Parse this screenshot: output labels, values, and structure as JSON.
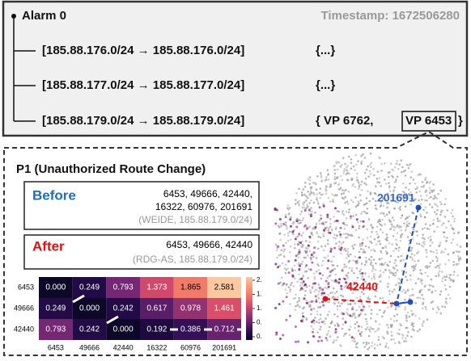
{
  "alarm": {
    "title": "Alarm 0",
    "timestamp": "Timestamp: 1672506280",
    "rows": [
      {
        "route": "[185.88.176.0/24 → 185.88.176.0/24]",
        "detail": "{...}"
      },
      {
        "route": "[185.88.177.0/24 → 185.88.177.0/24]",
        "detail": "{...}"
      },
      {
        "route": "[185.88.179.0/24 → 185.88.179.0/24]",
        "detail_open": "{ VP 6762,",
        "detail_boxed": "VP 6453",
        "detail_close": "}"
      }
    ]
  },
  "panel": {
    "title": "P1 (Unauthorized Route Change)",
    "before": {
      "label": "Before",
      "lines": [
        "6453, 49666, 42440,",
        "16322, 60976, 201691"
      ],
      "note": "(WEIDE, 185.88.179.0/24)"
    },
    "after": {
      "label": "After",
      "lines": [
        "6453, 49666, 42440"
      ],
      "note": "(RDG-AS, 185.88.179.0/24)"
    },
    "heatmap": {
      "row_labels": [
        "6453",
        "49666",
        "42440"
      ],
      "col_labels": [
        "6453",
        "49666",
        "42440",
        "16322",
        "60976",
        "201691"
      ],
      "cells": [
        [
          "0.000",
          "0.249",
          "0.793",
          "1.373",
          "1.865",
          "2.581"
        ],
        [
          "0.249",
          "0.000",
          "0.242",
          "0.617",
          "0.978",
          "1.461"
        ],
        [
          "0.793",
          "0.242",
          "0.000",
          "0.192",
          "0.386",
          "0.712"
        ]
      ],
      "colorbar_labels": [
        "2.",
        "1.",
        "1.",
        "0.",
        "0."
      ]
    },
    "scatter_labels": {
      "blue": "201691",
      "red": "42440"
    }
  }
}
